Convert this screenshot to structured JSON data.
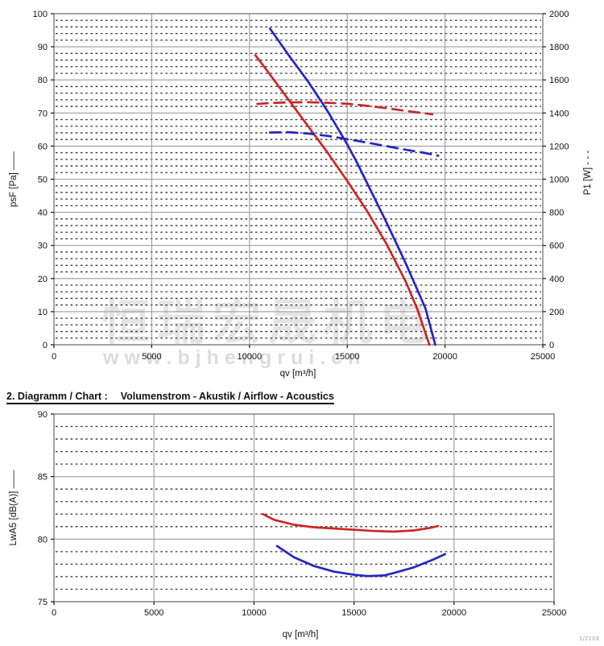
{
  "page": {
    "heading2_label": "2. Diagramm / Chart :",
    "heading2_title": "Volumenstrom - Akustik / Airflow - Acoustics",
    "footer_ref": "1/2103",
    "watermark": {
      "cjk": "恒瑞宏晟机电",
      "url": "www.bjhengrui.cn"
    },
    "colors": {
      "series_red": "#cc2626",
      "series_blue": "#2525c4",
      "grid_major": "#9b9b9b",
      "grid_minor": "#2e2e2e",
      "frame": "#7d7d7d",
      "text": "#111111"
    }
  },
  "chart_data": [
    {
      "id": "chart1",
      "type": "line",
      "title": "",
      "x_axis": {
        "label": "qv [m³/h]",
        "min": 0,
        "max": 25000,
        "tick_step": 5000
      },
      "y_left": {
        "label": "psF [Pa] ——",
        "min": 0,
        "max": 100,
        "major_step": 10,
        "minor_step": 2
      },
      "y_right": {
        "label": "P1 [W] - - -",
        "min": 0,
        "max": 2000,
        "major_step": 200
      },
      "grid": "major-solid + minor-dotted",
      "legend": "line styles shown in axis labels",
      "series": [
        {
          "name": "psF-curve-red",
          "axis": "left",
          "color": "series_red",
          "style": "solid",
          "points": [
            [
              10300,
              87.5
            ],
            [
              11000,
              82
            ],
            [
              12000,
              74
            ],
            [
              13000,
              66
            ],
            [
              14000,
              58
            ],
            [
              15000,
              49.5
            ],
            [
              16000,
              40.5
            ],
            [
              17000,
              30.5
            ],
            [
              18000,
              19
            ],
            [
              18600,
              10.5
            ],
            [
              19200,
              0
            ]
          ]
        },
        {
          "name": "psF-curve-blue",
          "axis": "left",
          "color": "series_blue",
          "style": "solid",
          "points": [
            [
              11050,
              95.5
            ],
            [
              12000,
              87.5
            ],
            [
              12500,
              83.5
            ],
            [
              13000,
              79.5
            ],
            [
              13500,
              75
            ],
            [
              14000,
              70.5
            ],
            [
              14500,
              65.5
            ],
            [
              15000,
              60.5
            ],
            [
              15500,
              55
            ],
            [
              16000,
              49
            ],
            [
              17000,
              37
            ],
            [
              18000,
              24.5
            ],
            [
              19000,
              11
            ],
            [
              19500,
              0
            ]
          ]
        },
        {
          "name": "P1-curve-red",
          "axis": "right",
          "color": "series_red",
          "style": "dashed",
          "points": [
            [
              10400,
              1455
            ],
            [
              11000,
              1460
            ],
            [
              12000,
              1464
            ],
            [
              13000,
              1465
            ],
            [
              14000,
              1462
            ],
            [
              15000,
              1456
            ],
            [
              16000,
              1444
            ],
            [
              17000,
              1429
            ],
            [
              18000,
              1413
            ],
            [
              19350,
              1392
            ]
          ]
        },
        {
          "name": "P1-curve-blue",
          "axis": "right",
          "color": "series_blue",
          "style": "dashed",
          "points": [
            [
              11050,
              1282
            ],
            [
              12000,
              1284
            ],
            [
              13000,
              1276
            ],
            [
              14000,
              1262
            ],
            [
              15000,
              1242
            ],
            [
              16000,
              1222
            ],
            [
              17000,
              1200
            ],
            [
              18000,
              1178
            ],
            [
              19000,
              1158
            ],
            [
              19650,
              1142
            ]
          ]
        }
      ]
    },
    {
      "id": "chart2",
      "type": "line",
      "title": "Volumenstrom - Akustik / Airflow - Acoustics",
      "x_axis": {
        "label": "qv [m³/h]",
        "min": 0,
        "max": 25000,
        "tick_step": 5000
      },
      "y_left": {
        "label": "LwA5 [dB(A)] ——",
        "min": 75,
        "max": 90,
        "major_step": 5,
        "minor_step": 1
      },
      "grid": "major-solid + minor-dotted",
      "series": [
        {
          "name": "LwA5-curve-red",
          "axis": "left",
          "color": "series_red",
          "style": "solid",
          "points": [
            [
              10450,
              82.0
            ],
            [
              11000,
              81.55
            ],
            [
              12000,
              81.15
            ],
            [
              13000,
              80.95
            ],
            [
              14000,
              80.85
            ],
            [
              15000,
              80.75
            ],
            [
              16000,
              80.65
            ],
            [
              17000,
              80.6
            ],
            [
              18000,
              80.7
            ],
            [
              18800,
              80.9
            ],
            [
              19200,
              81.05
            ]
          ]
        },
        {
          "name": "LwA5-curve-blue",
          "axis": "left",
          "color": "series_blue",
          "style": "solid",
          "points": [
            [
              11150,
              79.45
            ],
            [
              12000,
              78.55
            ],
            [
              13000,
              77.85
            ],
            [
              14000,
              77.4
            ],
            [
              15000,
              77.15
            ],
            [
              15700,
              77.05
            ],
            [
              16500,
              77.1
            ],
            [
              17000,
              77.3
            ],
            [
              18000,
              77.75
            ],
            [
              19000,
              78.4
            ],
            [
              19550,
              78.8
            ]
          ]
        }
      ]
    }
  ]
}
